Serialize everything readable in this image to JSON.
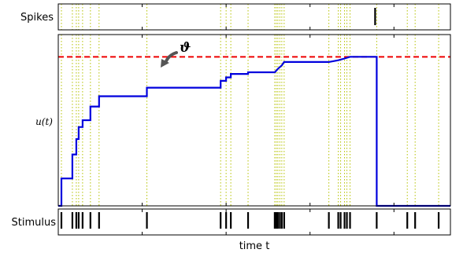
{
  "chart_data": {
    "type": "line",
    "xlabel": "time t",
    "panels": {
      "spikes": {
        "ylabel": "Spikes",
        "spike_times": [
          0.812
        ]
      },
      "membrane": {
        "ylabel": "u(t)",
        "threshold": 0.87,
        "threshold_label": "ϑ",
        "ylim": [
          0,
          1
        ],
        "points": [
          [
            0.0,
            0.0
          ],
          [
            0.008,
            0.0
          ],
          [
            0.008,
            0.16
          ],
          [
            0.036,
            0.16
          ],
          [
            0.036,
            0.3
          ],
          [
            0.046,
            0.3
          ],
          [
            0.046,
            0.39
          ],
          [
            0.052,
            0.39
          ],
          [
            0.052,
            0.46
          ],
          [
            0.062,
            0.46
          ],
          [
            0.062,
            0.5
          ],
          [
            0.082,
            0.5
          ],
          [
            0.082,
            0.58
          ],
          [
            0.104,
            0.58
          ],
          [
            0.104,
            0.64
          ],
          [
            0.226,
            0.64
          ],
          [
            0.226,
            0.69
          ],
          [
            0.414,
            0.69
          ],
          [
            0.414,
            0.73
          ],
          [
            0.428,
            0.73
          ],
          [
            0.428,
            0.75
          ],
          [
            0.44,
            0.75
          ],
          [
            0.44,
            0.77
          ],
          [
            0.484,
            0.77
          ],
          [
            0.484,
            0.78
          ],
          [
            0.552,
            0.78
          ],
          [
            0.56,
            0.8
          ],
          [
            0.57,
            0.82
          ],
          [
            0.576,
            0.84
          ],
          [
            0.69,
            0.84
          ],
          [
            0.714,
            0.85
          ],
          [
            0.73,
            0.86
          ],
          [
            0.744,
            0.87
          ],
          [
            0.812,
            0.87
          ],
          [
            0.812,
            0.0
          ],
          [
            1.0,
            0.0
          ]
        ]
      },
      "stimulus": {
        "ylabel": "Stimulus",
        "times": [
          0.008,
          0.036,
          0.046,
          0.052,
          0.062,
          0.082,
          0.104,
          0.226,
          0.414,
          0.428,
          0.44,
          0.484,
          0.552,
          0.556,
          0.56,
          0.565,
          0.57,
          0.576,
          0.69,
          0.714,
          0.72,
          0.73,
          0.736,
          0.744,
          0.812,
          0.89,
          0.91,
          0.97
        ]
      }
    },
    "grid": "vertical dotted at stimulus times",
    "colors": {
      "trace": "#0000dd",
      "threshold": "#ee0000",
      "grid": "#b5c200",
      "ink": "#000000"
    }
  }
}
